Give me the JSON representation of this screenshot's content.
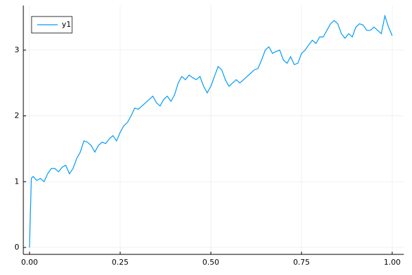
{
  "chart_data": {
    "type": "line",
    "x": [
      0,
      0.005,
      0.01,
      0.02,
      0.03,
      0.04,
      0.05,
      0.06,
      0.07,
      0.08,
      0.09,
      0.1,
      0.11,
      0.12,
      0.13,
      0.14,
      0.15,
      0.16,
      0.17,
      0.18,
      0.19,
      0.2,
      0.21,
      0.22,
      0.23,
      0.24,
      0.25,
      0.26,
      0.27,
      0.28,
      0.29,
      0.3,
      0.31,
      0.32,
      0.33,
      0.34,
      0.35,
      0.36,
      0.37,
      0.38,
      0.39,
      0.4,
      0.41,
      0.42,
      0.43,
      0.44,
      0.45,
      0.46,
      0.47,
      0.48,
      0.49,
      0.5,
      0.51,
      0.52,
      0.53,
      0.54,
      0.55,
      0.56,
      0.57,
      0.58,
      0.59,
      0.6,
      0.61,
      0.62,
      0.63,
      0.64,
      0.65,
      0.66,
      0.67,
      0.68,
      0.69,
      0.7,
      0.71,
      0.72,
      0.73,
      0.74,
      0.75,
      0.76,
      0.77,
      0.78,
      0.79,
      0.8,
      0.81,
      0.82,
      0.83,
      0.84,
      0.85,
      0.86,
      0.87,
      0.88,
      0.89,
      0.9,
      0.91,
      0.92,
      0.93,
      0.94,
      0.95,
      0.96,
      0.97,
      0.98,
      0.99,
      1.0
    ],
    "series": [
      {
        "name": "y1",
        "color": "#009af9",
        "values": [
          0,
          1.05,
          1.08,
          1.02,
          1.05,
          1.0,
          1.12,
          1.2,
          1.2,
          1.15,
          1.22,
          1.25,
          1.12,
          1.2,
          1.35,
          1.45,
          1.62,
          1.6,
          1.55,
          1.45,
          1.55,
          1.6,
          1.58,
          1.65,
          1.7,
          1.62,
          1.75,
          1.85,
          1.9,
          2.0,
          2.12,
          2.1,
          2.15,
          2.2,
          2.25,
          2.3,
          2.2,
          2.15,
          2.25,
          2.3,
          2.22,
          2.32,
          2.5,
          2.6,
          2.55,
          2.62,
          2.58,
          2.55,
          2.6,
          2.45,
          2.35,
          2.45,
          2.6,
          2.75,
          2.7,
          2.55,
          2.45,
          2.5,
          2.55,
          2.5,
          2.55,
          2.6,
          2.65,
          2.7,
          2.72,
          2.85,
          3.0,
          3.05,
          2.95,
          2.98,
          3.0,
          2.85,
          2.8,
          2.9,
          2.78,
          2.8,
          2.95,
          3.0,
          3.08,
          3.15,
          3.1,
          3.2,
          3.2,
          3.3,
          3.4,
          3.45,
          3.4,
          3.25,
          3.18,
          3.25,
          3.2,
          3.35,
          3.4,
          3.38,
          3.3,
          3.3,
          3.35,
          3.3,
          3.25,
          3.52,
          3.35,
          3.22
        ]
      }
    ],
    "xlim": [
      -0.017,
      1.032
    ],
    "ylim": [
      -0.105,
      3.678
    ],
    "xticks": [
      {
        "value": 0,
        "label": "0.00"
      },
      {
        "value": 0.25,
        "label": "0.25"
      },
      {
        "value": 0.5,
        "label": "0.50"
      },
      {
        "value": 0.75,
        "label": "0.75"
      },
      {
        "value": 1,
        "label": "1.00"
      }
    ],
    "yticks": [
      0,
      1,
      2,
      3
    ],
    "grid": true,
    "legend": "top-left"
  }
}
